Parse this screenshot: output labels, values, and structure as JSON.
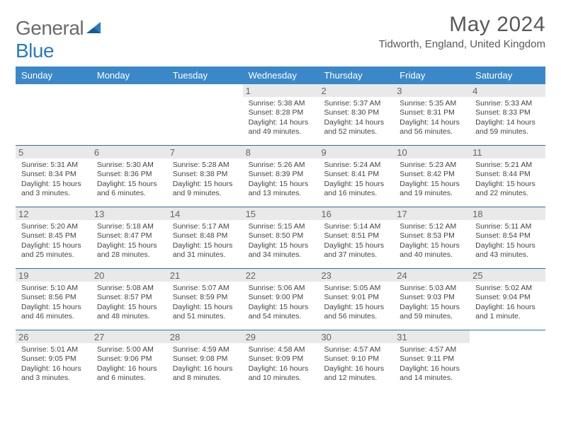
{
  "logo": {
    "word1": "General",
    "word2": "Blue"
  },
  "header": {
    "month_title": "May 2024",
    "location": "Tidworth, England, United Kingdom"
  },
  "colors": {
    "header_bg": "#3b88c9",
    "row_border": "#2f6fa8",
    "daynum_bg": "#e9e9e9",
    "text_muted": "#595959"
  },
  "weekdays": [
    "Sunday",
    "Monday",
    "Tuesday",
    "Wednesday",
    "Thursday",
    "Friday",
    "Saturday"
  ],
  "weeks": [
    [
      null,
      null,
      null,
      {
        "n": "1",
        "sunrise": "5:38 AM",
        "sunset": "8:28 PM",
        "daylight": "14 hours and 49 minutes."
      },
      {
        "n": "2",
        "sunrise": "5:37 AM",
        "sunset": "8:30 PM",
        "daylight": "14 hours and 52 minutes."
      },
      {
        "n": "3",
        "sunrise": "5:35 AM",
        "sunset": "8:31 PM",
        "daylight": "14 hours and 56 minutes."
      },
      {
        "n": "4",
        "sunrise": "5:33 AM",
        "sunset": "8:33 PM",
        "daylight": "14 hours and 59 minutes."
      }
    ],
    [
      {
        "n": "5",
        "sunrise": "5:31 AM",
        "sunset": "8:34 PM",
        "daylight": "15 hours and 3 minutes."
      },
      {
        "n": "6",
        "sunrise": "5:30 AM",
        "sunset": "8:36 PM",
        "daylight": "15 hours and 6 minutes."
      },
      {
        "n": "7",
        "sunrise": "5:28 AM",
        "sunset": "8:38 PM",
        "daylight": "15 hours and 9 minutes."
      },
      {
        "n": "8",
        "sunrise": "5:26 AM",
        "sunset": "8:39 PM",
        "daylight": "15 hours and 13 minutes."
      },
      {
        "n": "9",
        "sunrise": "5:24 AM",
        "sunset": "8:41 PM",
        "daylight": "15 hours and 16 minutes."
      },
      {
        "n": "10",
        "sunrise": "5:23 AM",
        "sunset": "8:42 PM",
        "daylight": "15 hours and 19 minutes."
      },
      {
        "n": "11",
        "sunrise": "5:21 AM",
        "sunset": "8:44 PM",
        "daylight": "15 hours and 22 minutes."
      }
    ],
    [
      {
        "n": "12",
        "sunrise": "5:20 AM",
        "sunset": "8:45 PM",
        "daylight": "15 hours and 25 minutes."
      },
      {
        "n": "13",
        "sunrise": "5:18 AM",
        "sunset": "8:47 PM",
        "daylight": "15 hours and 28 minutes."
      },
      {
        "n": "14",
        "sunrise": "5:17 AM",
        "sunset": "8:48 PM",
        "daylight": "15 hours and 31 minutes."
      },
      {
        "n": "15",
        "sunrise": "5:15 AM",
        "sunset": "8:50 PM",
        "daylight": "15 hours and 34 minutes."
      },
      {
        "n": "16",
        "sunrise": "5:14 AM",
        "sunset": "8:51 PM",
        "daylight": "15 hours and 37 minutes."
      },
      {
        "n": "17",
        "sunrise": "5:12 AM",
        "sunset": "8:53 PM",
        "daylight": "15 hours and 40 minutes."
      },
      {
        "n": "18",
        "sunrise": "5:11 AM",
        "sunset": "8:54 PM",
        "daylight": "15 hours and 43 minutes."
      }
    ],
    [
      {
        "n": "19",
        "sunrise": "5:10 AM",
        "sunset": "8:56 PM",
        "daylight": "15 hours and 46 minutes."
      },
      {
        "n": "20",
        "sunrise": "5:08 AM",
        "sunset": "8:57 PM",
        "daylight": "15 hours and 48 minutes."
      },
      {
        "n": "21",
        "sunrise": "5:07 AM",
        "sunset": "8:59 PM",
        "daylight": "15 hours and 51 minutes."
      },
      {
        "n": "22",
        "sunrise": "5:06 AM",
        "sunset": "9:00 PM",
        "daylight": "15 hours and 54 minutes."
      },
      {
        "n": "23",
        "sunrise": "5:05 AM",
        "sunset": "9:01 PM",
        "daylight": "15 hours and 56 minutes."
      },
      {
        "n": "24",
        "sunrise": "5:03 AM",
        "sunset": "9:03 PM",
        "daylight": "15 hours and 59 minutes."
      },
      {
        "n": "25",
        "sunrise": "5:02 AM",
        "sunset": "9:04 PM",
        "daylight": "16 hours and 1 minute."
      }
    ],
    [
      {
        "n": "26",
        "sunrise": "5:01 AM",
        "sunset": "9:05 PM",
        "daylight": "16 hours and 3 minutes."
      },
      {
        "n": "27",
        "sunrise": "5:00 AM",
        "sunset": "9:06 PM",
        "daylight": "16 hours and 6 minutes."
      },
      {
        "n": "28",
        "sunrise": "4:59 AM",
        "sunset": "9:08 PM",
        "daylight": "16 hours and 8 minutes."
      },
      {
        "n": "29",
        "sunrise": "4:58 AM",
        "sunset": "9:09 PM",
        "daylight": "16 hours and 10 minutes."
      },
      {
        "n": "30",
        "sunrise": "4:57 AM",
        "sunset": "9:10 PM",
        "daylight": "16 hours and 12 minutes."
      },
      {
        "n": "31",
        "sunrise": "4:57 AM",
        "sunset": "9:11 PM",
        "daylight": "16 hours and 14 minutes."
      },
      null
    ]
  ],
  "labels": {
    "sunrise": "Sunrise: ",
    "sunset": "Sunset: ",
    "daylight": "Daylight: "
  }
}
